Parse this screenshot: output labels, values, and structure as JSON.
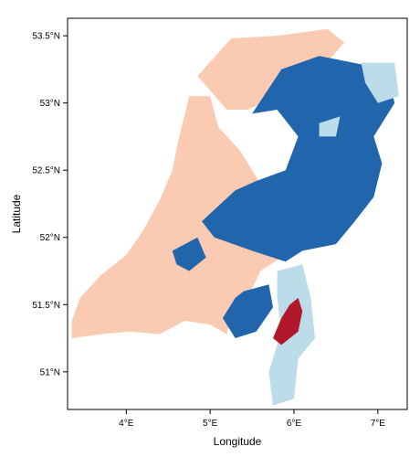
{
  "chart_data": {
    "type": "heatmap",
    "title": "",
    "xlabel": "Longitude",
    "ylabel": "Latitude",
    "xlim": [
      3.3,
      7.35
    ],
    "ylim": [
      50.72,
      53.63
    ],
    "x_ticks": [
      {
        "value": 4,
        "label": "4°E"
      },
      {
        "value": 5,
        "label": "5°E"
      },
      {
        "value": 6,
        "label": "6°E"
      },
      {
        "value": 7,
        "label": "7°E"
      }
    ],
    "y_ticks": [
      {
        "value": 51.0,
        "label": "51°N"
      },
      {
        "value": 51.5,
        "label": "51.5°N"
      },
      {
        "value": 52.0,
        "label": "52°N"
      },
      {
        "value": 52.5,
        "label": "52.5°N"
      },
      {
        "value": 53.0,
        "label": "53°N"
      },
      {
        "value": 53.5,
        "label": "53.5°N"
      }
    ],
    "grid": false,
    "legend": "none",
    "category_colors": {
      "salmon": "#fbcab2",
      "blue": "#2166ac",
      "light_blue": "#bcdcea",
      "red": "#b2182b"
    },
    "regions": [
      {
        "category": "salmon",
        "polygon": [
          [
            3.35,
            51.38
          ],
          [
            3.45,
            51.55
          ],
          [
            3.7,
            51.72
          ],
          [
            4.0,
            51.87
          ],
          [
            4.2,
            52.05
          ],
          [
            4.4,
            52.28
          ],
          [
            4.55,
            52.5
          ],
          [
            4.62,
            52.72
          ],
          [
            4.7,
            52.92
          ],
          [
            4.75,
            53.05
          ],
          [
            5.0,
            53.05
          ],
          [
            5.1,
            52.82
          ],
          [
            5.35,
            52.65
          ],
          [
            5.6,
            52.4
          ],
          [
            5.9,
            52.42
          ],
          [
            6.1,
            52.5
          ],
          [
            6.25,
            52.52
          ],
          [
            6.0,
            52.3
          ],
          [
            5.7,
            52.15
          ],
          [
            5.85,
            51.85
          ],
          [
            5.6,
            51.75
          ],
          [
            5.5,
            51.62
          ],
          [
            5.3,
            51.55
          ],
          [
            5.2,
            51.28
          ],
          [
            5.0,
            51.35
          ],
          [
            4.7,
            51.38
          ],
          [
            4.4,
            51.28
          ],
          [
            4.05,
            51.3
          ],
          [
            3.7,
            51.28
          ],
          [
            3.35,
            51.25
          ]
        ]
      },
      {
        "category": "salmon",
        "polygon": [
          [
            4.85,
            53.2
          ],
          [
            5.25,
            53.48
          ],
          [
            5.8,
            53.5
          ],
          [
            6.4,
            53.55
          ],
          [
            6.6,
            53.45
          ],
          [
            6.25,
            53.2
          ],
          [
            5.8,
            53.05
          ],
          [
            5.45,
            52.95
          ],
          [
            5.2,
            52.95
          ]
        ]
      },
      {
        "category": "blue",
        "polygon": [
          [
            5.5,
            52.92
          ],
          [
            5.85,
            53.25
          ],
          [
            6.3,
            53.35
          ],
          [
            6.7,
            53.3
          ],
          [
            7.1,
            53.25
          ],
          [
            7.2,
            53.0
          ],
          [
            6.95,
            52.75
          ],
          [
            7.05,
            52.55
          ],
          [
            6.95,
            52.3
          ],
          [
            6.7,
            52.1
          ],
          [
            6.5,
            51.95
          ],
          [
            6.1,
            51.9
          ],
          [
            5.9,
            51.82
          ],
          [
            5.5,
            51.9
          ],
          [
            5.05,
            52.0
          ],
          [
            4.9,
            52.12
          ],
          [
            5.3,
            52.35
          ],
          [
            5.55,
            52.42
          ],
          [
            5.9,
            52.5
          ],
          [
            6.05,
            52.75
          ],
          [
            5.8,
            52.95
          ]
        ]
      },
      {
        "category": "blue",
        "polygon": [
          [
            5.4,
            51.6
          ],
          [
            5.7,
            51.65
          ],
          [
            5.75,
            51.48
          ],
          [
            5.55,
            51.3
          ],
          [
            5.3,
            51.25
          ],
          [
            5.15,
            51.4
          ],
          [
            5.3,
            51.55
          ]
        ]
      },
      {
        "category": "blue",
        "polygon": [
          [
            4.55,
            51.9
          ],
          [
            4.85,
            52.0
          ],
          [
            4.95,
            51.85
          ],
          [
            4.75,
            51.75
          ],
          [
            4.6,
            51.8
          ]
        ]
      },
      {
        "category": "light_blue",
        "polygon": [
          [
            5.8,
            51.75
          ],
          [
            6.1,
            51.8
          ],
          [
            6.2,
            51.55
          ],
          [
            6.25,
            51.25
          ],
          [
            6.05,
            51.1
          ],
          [
            6.0,
            50.8
          ],
          [
            5.75,
            50.75
          ],
          [
            5.7,
            51.0
          ],
          [
            5.85,
            51.3
          ],
          [
            5.8,
            51.55
          ]
        ]
      },
      {
        "category": "light_blue",
        "polygon": [
          [
            6.8,
            53.3
          ],
          [
            7.2,
            53.3
          ],
          [
            7.25,
            53.05
          ],
          [
            7.0,
            53.0
          ],
          [
            6.85,
            53.15
          ]
        ]
      },
      {
        "category": "light_blue",
        "polygon": [
          [
            6.3,
            52.85
          ],
          [
            6.55,
            52.9
          ],
          [
            6.5,
            52.75
          ],
          [
            6.3,
            52.75
          ]
        ]
      },
      {
        "category": "red",
        "polygon": [
          [
            5.95,
            51.5
          ],
          [
            6.05,
            51.55
          ],
          [
            6.1,
            51.45
          ],
          [
            6.05,
            51.3
          ],
          [
            5.85,
            51.2
          ],
          [
            5.75,
            51.25
          ],
          [
            5.85,
            51.4
          ]
        ]
      }
    ]
  }
}
